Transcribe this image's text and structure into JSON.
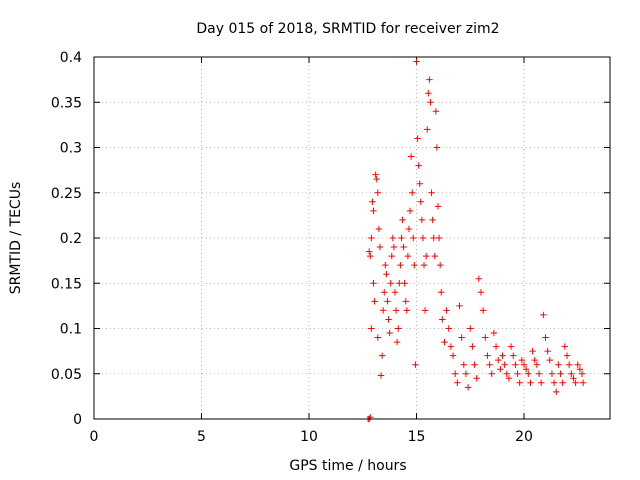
{
  "chart_data": {
    "type": "scatter",
    "title": "Day 015 of 2018, SRMTID for receiver zim2",
    "xlabel": "GPS time / hours",
    "ylabel": "SRMTID / TECUs",
    "xlim": [
      0,
      24
    ],
    "ylim": [
      0,
      0.4
    ],
    "xticks": [
      "0",
      "5",
      "10",
      "15",
      "20"
    ],
    "yticks": [
      "0",
      "0.05",
      "0.1",
      "0.15",
      "0.2",
      "0.25",
      "0.3",
      "0.35",
      "0.4"
    ],
    "grid": true,
    "marker": "plus",
    "color": "#ff0000",
    "series": [
      {
        "name": "SRMTID",
        "points": [
          [
            12.75,
            0.0
          ],
          [
            12.8,
            0.0
          ],
          [
            12.85,
            0.002
          ],
          [
            12.8,
            0.185
          ],
          [
            12.85,
            0.18
          ],
          [
            12.9,
            0.2
          ],
          [
            12.95,
            0.24
          ],
          [
            13.0,
            0.23
          ],
          [
            13.0,
            0.15
          ],
          [
            12.9,
            0.1
          ],
          [
            13.05,
            0.13
          ],
          [
            13.1,
            0.27
          ],
          [
            13.15,
            0.265
          ],
          [
            13.2,
            0.25
          ],
          [
            13.25,
            0.21
          ],
          [
            13.3,
            0.19
          ],
          [
            13.2,
            0.09
          ],
          [
            13.35,
            0.048
          ],
          [
            13.4,
            0.07
          ],
          [
            13.45,
            0.12
          ],
          [
            13.5,
            0.14
          ],
          [
            13.55,
            0.17
          ],
          [
            13.6,
            0.16
          ],
          [
            13.65,
            0.13
          ],
          [
            13.7,
            0.11
          ],
          [
            13.75,
            0.095
          ],
          [
            13.8,
            0.15
          ],
          [
            13.85,
            0.18
          ],
          [
            13.9,
            0.2
          ],
          [
            13.95,
            0.19
          ],
          [
            14.0,
            0.14
          ],
          [
            14.05,
            0.12
          ],
          [
            14.1,
            0.085
          ],
          [
            14.15,
            0.1
          ],
          [
            14.2,
            0.15
          ],
          [
            14.25,
            0.17
          ],
          [
            14.3,
            0.2
          ],
          [
            14.35,
            0.22
          ],
          [
            14.4,
            0.19
          ],
          [
            14.45,
            0.15
          ],
          [
            14.5,
            0.13
          ],
          [
            14.55,
            0.12
          ],
          [
            14.6,
            0.18
          ],
          [
            14.65,
            0.21
          ],
          [
            14.7,
            0.23
          ],
          [
            14.75,
            0.29
          ],
          [
            14.8,
            0.25
          ],
          [
            14.85,
            0.2
          ],
          [
            14.9,
            0.17
          ],
          [
            14.95,
            0.06
          ],
          [
            15.0,
            0.395
          ],
          [
            15.05,
            0.31
          ],
          [
            15.1,
            0.28
          ],
          [
            15.15,
            0.26
          ],
          [
            15.2,
            0.24
          ],
          [
            15.25,
            0.22
          ],
          [
            15.3,
            0.2
          ],
          [
            15.35,
            0.17
          ],
          [
            15.4,
            0.12
          ],
          [
            15.45,
            0.18
          ],
          [
            15.5,
            0.32
          ],
          [
            15.55,
            0.36
          ],
          [
            15.6,
            0.375
          ],
          [
            15.65,
            0.35
          ],
          [
            15.7,
            0.25
          ],
          [
            15.75,
            0.22
          ],
          [
            15.8,
            0.2
          ],
          [
            15.85,
            0.18
          ],
          [
            15.9,
            0.34
          ],
          [
            15.95,
            0.3
          ],
          [
            16.0,
            0.235
          ],
          [
            16.05,
            0.2
          ],
          [
            16.1,
            0.17
          ],
          [
            16.15,
            0.14
          ],
          [
            16.2,
            0.11
          ],
          [
            16.3,
            0.085
          ],
          [
            16.4,
            0.12
          ],
          [
            16.5,
            0.1
          ],
          [
            16.6,
            0.08
          ],
          [
            16.7,
            0.07
          ],
          [
            16.8,
            0.05
          ],
          [
            16.9,
            0.04
          ],
          [
            17.0,
            0.125
          ],
          [
            17.1,
            0.09
          ],
          [
            17.2,
            0.06
          ],
          [
            17.3,
            0.05
          ],
          [
            17.4,
            0.035
          ],
          [
            17.5,
            0.1
          ],
          [
            17.6,
            0.08
          ],
          [
            17.7,
            0.06
          ],
          [
            17.8,
            0.045
          ],
          [
            17.9,
            0.155
          ],
          [
            18.0,
            0.14
          ],
          [
            18.1,
            0.12
          ],
          [
            18.2,
            0.09
          ],
          [
            18.3,
            0.07
          ],
          [
            18.4,
            0.06
          ],
          [
            18.5,
            0.05
          ],
          [
            18.6,
            0.095
          ],
          [
            18.7,
            0.08
          ],
          [
            18.8,
            0.065
          ],
          [
            18.9,
            0.055
          ],
          [
            19.0,
            0.07
          ],
          [
            19.1,
            0.06
          ],
          [
            19.2,
            0.05
          ],
          [
            19.3,
            0.045
          ],
          [
            19.4,
            0.08
          ],
          [
            19.5,
            0.07
          ],
          [
            19.6,
            0.06
          ],
          [
            19.7,
            0.05
          ],
          [
            19.8,
            0.04
          ],
          [
            19.9,
            0.065
          ],
          [
            20.0,
            0.06
          ],
          [
            20.1,
            0.055
          ],
          [
            20.2,
            0.05
          ],
          [
            20.3,
            0.04
          ],
          [
            20.4,
            0.075
          ],
          [
            20.5,
            0.065
          ],
          [
            20.6,
            0.06
          ],
          [
            20.7,
            0.05
          ],
          [
            20.8,
            0.04
          ],
          [
            20.9,
            0.115
          ],
          [
            21.0,
            0.09
          ],
          [
            21.1,
            0.075
          ],
          [
            21.2,
            0.065
          ],
          [
            21.3,
            0.05
          ],
          [
            21.4,
            0.04
          ],
          [
            21.5,
            0.03
          ],
          [
            21.6,
            0.06
          ],
          [
            21.7,
            0.05
          ],
          [
            21.8,
            0.04
          ],
          [
            21.9,
            0.08
          ],
          [
            22.0,
            0.07
          ],
          [
            22.1,
            0.06
          ],
          [
            22.2,
            0.05
          ],
          [
            22.3,
            0.045
          ],
          [
            22.4,
            0.04
          ],
          [
            22.5,
            0.06
          ],
          [
            22.6,
            0.055
          ],
          [
            22.7,
            0.05
          ],
          [
            22.75,
            0.04
          ]
        ]
      }
    ]
  }
}
